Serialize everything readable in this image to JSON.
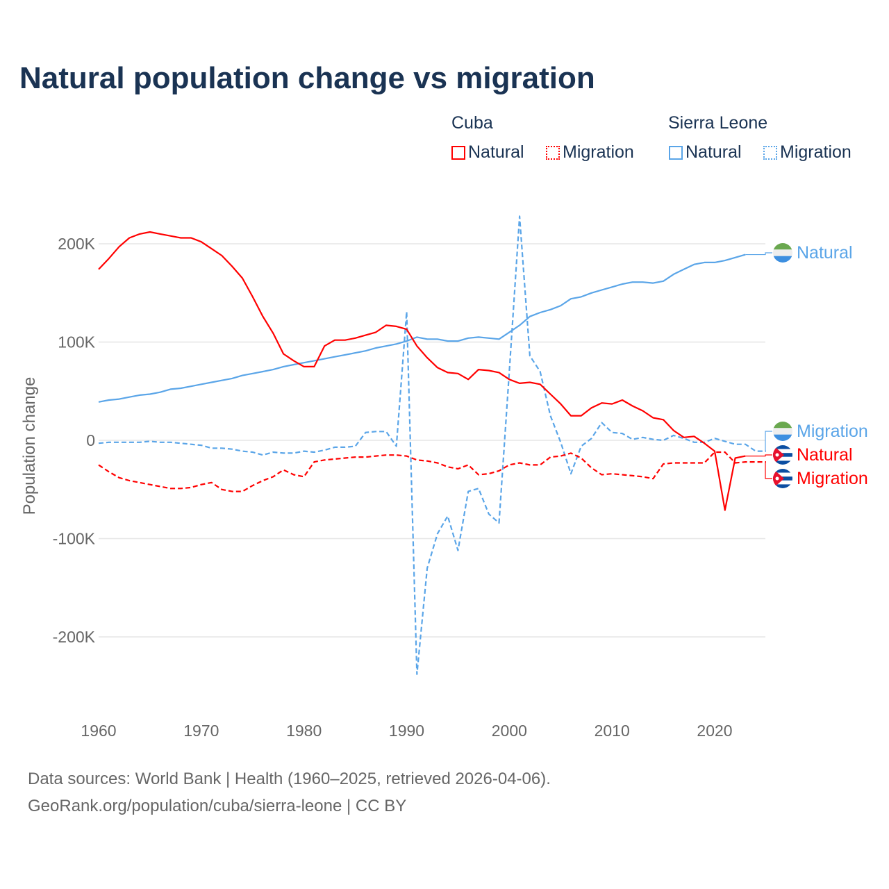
{
  "title": "Natural population change vs migration",
  "legend": {
    "groups": [
      {
        "name": "Cuba",
        "items": [
          {
            "label": "Natural",
            "color": "#ff0000",
            "style": "solid"
          },
          {
            "label": "Migration",
            "color": "#ff0000",
            "style": "dotted"
          }
        ]
      },
      {
        "name": "Sierra Leone",
        "items": [
          {
            "label": "Natural",
            "color": "#5aa5e8",
            "style": "solid"
          },
          {
            "label": "Migration",
            "color": "#5aa5e8",
            "style": "dotted"
          }
        ]
      }
    ]
  },
  "end_labels": [
    "Natural",
    "Migration",
    "Natural",
    "Migration"
  ],
  "source": {
    "line1": "Data sources: World Bank | Health (1960–2025, retrieved 2026-04-06).",
    "line2": "GeoRank.org/population/cuba/sierra-leone | CC BY"
  },
  "chart_data": {
    "type": "line",
    "title": "Natural population change vs migration",
    "xlabel": "",
    "ylabel": "Population change",
    "xlim": [
      1960,
      2025
    ],
    "ylim": [
      -250000,
      230000
    ],
    "xticks": [
      1960,
      1970,
      1980,
      1990,
      2000,
      2010,
      2020
    ],
    "xtick_labels": [
      "1960",
      "1970",
      "1980",
      "1990",
      "2000",
      "2010",
      "2020"
    ],
    "yticks": [
      200000,
      100000,
      0,
      -100000,
      -200000
    ],
    "ytick_labels": [
      "200K",
      "100K",
      "0",
      "-100K",
      "-200K"
    ],
    "grid": true,
    "series": [
      {
        "name": "Cuba Natural",
        "color": "#ff0000",
        "dash": false,
        "start": 1960,
        "values": [
          174,
          185,
          197,
          206,
          210,
          212,
          210,
          208,
          206,
          206,
          202,
          195,
          188,
          177,
          165,
          146,
          126,
          109,
          88,
          81,
          75,
          75,
          96,
          102,
          102,
          104,
          107,
          110,
          117,
          116,
          113,
          96,
          84,
          74,
          69,
          68,
          62,
          72,
          71,
          69,
          62,
          58,
          59,
          57,
          47,
          37,
          25,
          25,
          33,
          38,
          37,
          41,
          35,
          30,
          23,
          21,
          10,
          3,
          4,
          -3,
          -11,
          -71,
          -18,
          -16
        ]
      },
      {
        "name": "Cuba Migration",
        "color": "#ff0000",
        "dash": true,
        "start": 1960,
        "values": [
          -25,
          -32,
          -38,
          -41,
          -43,
          -45,
          -47,
          -49,
          -49,
          -48,
          -45,
          -43,
          -50,
          -52,
          -52,
          -46,
          -41,
          -37,
          -30,
          -35,
          -37,
          -22,
          -20,
          -19,
          -18,
          -17,
          -17,
          -16,
          -15,
          -15,
          -16,
          -20,
          -21,
          -23,
          -27,
          -29,
          -25,
          -35,
          -34,
          -31,
          -25,
          -23,
          -25,
          -25,
          -17,
          -16,
          -13,
          -18,
          -28,
          -35,
          -34,
          -35,
          -36,
          -37,
          -39,
          -24,
          -23,
          -23,
          -23,
          -23,
          -12,
          -12,
          -23,
          -22,
          -22,
          -22
        ]
      },
      {
        "name": "Sierra Leone Natural",
        "color": "#5aa5e8",
        "dash": false,
        "start": 1960,
        "values": [
          39,
          41,
          42,
          44,
          46,
          47,
          49,
          52,
          53,
          55,
          57,
          59,
          61,
          63,
          66,
          68,
          70,
          72,
          75,
          77,
          79,
          81,
          83,
          85,
          87,
          89,
          91,
          94,
          96,
          98,
          101,
          105,
          103,
          103,
          101,
          101,
          104,
          105,
          104,
          103,
          110,
          117,
          126,
          130,
          133,
          137,
          144,
          146,
          150,
          153,
          156,
          159,
          161,
          161,
          160,
          162,
          169,
          174,
          179,
          181,
          181,
          183,
          186,
          189
        ]
      },
      {
        "name": "Sierra Leone Migration",
        "color": "#5aa5e8",
        "dash": true,
        "start": 1960,
        "values": [
          -3,
          -2,
          -2,
          -2,
          -2,
          -1,
          -2,
          -2,
          -3,
          -4,
          -5,
          -8,
          -8,
          -9,
          -11,
          -12,
          -15,
          -12,
          -13,
          -13,
          -11,
          -12,
          -10,
          -7,
          -7,
          -6,
          8,
          9,
          9,
          -6,
          131,
          -238,
          -130,
          -95,
          -77,
          -112,
          -52,
          -49,
          -75,
          -84,
          70,
          228,
          86,
          70,
          25,
          -2,
          -34,
          -6,
          2,
          18,
          8,
          7,
          1,
          3,
          1,
          0,
          5,
          2,
          -2,
          -2,
          2,
          -1,
          -4,
          -4,
          -11,
          -11
        ]
      }
    ],
    "value_unit": "thousands"
  }
}
